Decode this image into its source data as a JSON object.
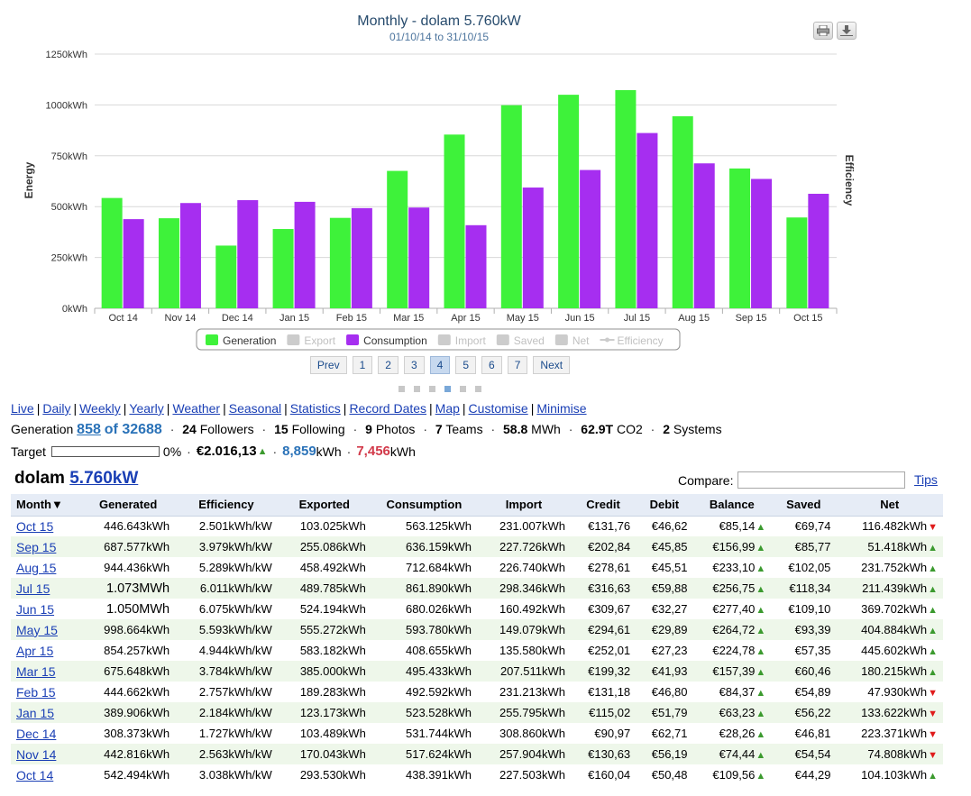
{
  "chart_data": {
    "type": "bar",
    "title": "Monthly - dolam 5.760kW",
    "subtitle": "01/10/14 to 31/10/15",
    "ylabel": "Energy",
    "y2label": "Efficiency",
    "ylim": [
      0,
      1250
    ],
    "yticks": [
      "0kWh",
      "250kWh",
      "500kWh",
      "750kWh",
      "1000kWh",
      "1250kWh"
    ],
    "categories": [
      "Oct 14",
      "Nov 14",
      "Dec 14",
      "Jan 15",
      "Feb 15",
      "Mar 15",
      "Apr 15",
      "May 15",
      "Jun 15",
      "Jul 15",
      "Aug 15",
      "Sep 15",
      "Oct 15"
    ],
    "series": [
      {
        "name": "Generation",
        "color": "#3ef23a",
        "values": [
          542.494,
          442.816,
          308.373,
          389.906,
          444.662,
          675.648,
          854.257,
          998.664,
          1050.0,
          1073.0,
          944.436,
          687.577,
          446.643
        ]
      },
      {
        "name": "Consumption",
        "color": "#a62ef0",
        "values": [
          438.391,
          517.624,
          531.744,
          523.528,
          492.592,
          495.433,
          408.655,
          593.78,
          680.026,
          861.89,
          712.684,
          636.159,
          563.125
        ]
      }
    ],
    "legend": [
      {
        "name": "Generation",
        "color": "#3ef23a",
        "active": true
      },
      {
        "name": "Export",
        "color": "#cccccc",
        "active": false
      },
      {
        "name": "Consumption",
        "color": "#a62ef0",
        "active": true
      },
      {
        "name": "Import",
        "color": "#cccccc",
        "active": false
      },
      {
        "name": "Saved",
        "color": "#cccccc",
        "active": false
      },
      {
        "name": "Net",
        "color": "#cccccc",
        "active": false
      },
      {
        "name": "Efficiency",
        "color": "#cccccc",
        "active": false,
        "line": true
      }
    ],
    "legend_position": "bottom-center",
    "grid": true
  },
  "pager": {
    "prev": "Prev",
    "next": "Next",
    "pages": [
      "1",
      "2",
      "3",
      "4",
      "5",
      "6",
      "7"
    ],
    "active": "4"
  },
  "nav_links": [
    "Live",
    "Daily",
    "Weekly",
    "Yearly",
    "Weather",
    "Seasonal",
    "Statistics",
    "Record Dates",
    "Map",
    "Customise",
    "Minimise"
  ],
  "stats": {
    "generation_label": "Generation",
    "rank": "858",
    "rank_of": "of 32688",
    "followers": "24",
    "followers_label": "Followers",
    "following": "15",
    "following_label": "Following",
    "photos": "9",
    "photos_label": "Photos",
    "teams": "7",
    "teams_label": "Teams",
    "mwh": "58.8",
    "mwh_label": "MWh",
    "co2": "62.9T",
    "co2_label": "CO2",
    "systems": "2",
    "systems_label": "Systems"
  },
  "target": {
    "label": "Target",
    "progress_percent": 0,
    "percent_text": "0%",
    "money": "€2.016,13",
    "blue_value": "8,859",
    "blue_unit": "kWh",
    "red_value": "7,456",
    "red_unit": "kWh"
  },
  "system": {
    "name": "dolam",
    "size": "5.760kW"
  },
  "compare": {
    "label": "Compare:",
    "value": ""
  },
  "tips": "Tips",
  "table": {
    "headers": [
      "Month▼",
      "Generated",
      "Efficiency",
      "Exported",
      "Consumption",
      "Import",
      "Credit",
      "Debit",
      "Balance",
      "Saved",
      "Net"
    ],
    "rows": [
      {
        "month": "Oct 15",
        "generated": "446.643kWh",
        "efficiency": "2.501kWh/kW",
        "exported": "103.025kWh",
        "consumption": "563.125kWh",
        "import": "231.007kWh",
        "credit": "€131,76",
        "debit": "€46,62",
        "balance": "€85,14",
        "saved": "€69,74",
        "net": "116.482kWh",
        "net_dir": "down"
      },
      {
        "month": "Sep 15",
        "generated": "687.577kWh",
        "efficiency": "3.979kWh/kW",
        "exported": "255.086kWh",
        "consumption": "636.159kWh",
        "import": "227.726kWh",
        "credit": "€202,84",
        "debit": "€45,85",
        "balance": "€156,99",
        "saved": "€85,77",
        "net": "51.418kWh",
        "net_dir": "up"
      },
      {
        "month": "Aug 15",
        "generated": "944.436kWh",
        "efficiency": "5.289kWh/kW",
        "exported": "458.492kWh",
        "consumption": "712.684kWh",
        "import": "226.740kWh",
        "credit": "€278,61",
        "debit": "€45,51",
        "balance": "€233,10",
        "saved": "€102,05",
        "net": "231.752kWh",
        "net_dir": "up"
      },
      {
        "month": "Jul 15",
        "generated": "1.073MWh",
        "efficiency": "6.011kWh/kW",
        "exported": "489.785kWh",
        "consumption": "861.890kWh",
        "import": "298.346kWh",
        "credit": "€316,63",
        "debit": "€59,88",
        "balance": "€256,75",
        "saved": "€118,34",
        "net": "211.439kWh",
        "net_dir": "up"
      },
      {
        "month": "Jun 15",
        "generated": "1.050MWh",
        "efficiency": "6.075kWh/kW",
        "exported": "524.194kWh",
        "consumption": "680.026kWh",
        "import": "160.492kWh",
        "credit": "€309,67",
        "debit": "€32,27",
        "balance": "€277,40",
        "saved": "€109,10",
        "net": "369.702kWh",
        "net_dir": "up"
      },
      {
        "month": "May 15",
        "generated": "998.664kWh",
        "efficiency": "5.593kWh/kW",
        "exported": "555.272kWh",
        "consumption": "593.780kWh",
        "import": "149.079kWh",
        "credit": "€294,61",
        "debit": "€29,89",
        "balance": "€264,72",
        "saved": "€93,39",
        "net": "404.884kWh",
        "net_dir": "up"
      },
      {
        "month": "Apr 15",
        "generated": "854.257kWh",
        "efficiency": "4.944kWh/kW",
        "exported": "583.182kWh",
        "consumption": "408.655kWh",
        "import": "135.580kWh",
        "credit": "€252,01",
        "debit": "€27,23",
        "balance": "€224,78",
        "saved": "€57,35",
        "net": "445.602kWh",
        "net_dir": "up"
      },
      {
        "month": "Mar 15",
        "generated": "675.648kWh",
        "efficiency": "3.784kWh/kW",
        "exported": "385.000kWh",
        "consumption": "495.433kWh",
        "import": "207.511kWh",
        "credit": "€199,32",
        "debit": "€41,93",
        "balance": "€157,39",
        "saved": "€60,46",
        "net": "180.215kWh",
        "net_dir": "up"
      },
      {
        "month": "Feb 15",
        "generated": "444.662kWh",
        "efficiency": "2.757kWh/kW",
        "exported": "189.283kWh",
        "consumption": "492.592kWh",
        "import": "231.213kWh",
        "credit": "€131,18",
        "debit": "€46,80",
        "balance": "€84,37",
        "saved": "€54,89",
        "net": "47.930kWh",
        "net_dir": "down"
      },
      {
        "month": "Jan 15",
        "generated": "389.906kWh",
        "efficiency": "2.184kWh/kW",
        "exported": "123.173kWh",
        "consumption": "523.528kWh",
        "import": "255.795kWh",
        "credit": "€115,02",
        "debit": "€51,79",
        "balance": "€63,23",
        "saved": "€56,22",
        "net": "133.622kWh",
        "net_dir": "down"
      },
      {
        "month": "Dec 14",
        "generated": "308.373kWh",
        "efficiency": "1.727kWh/kW",
        "exported": "103.489kWh",
        "consumption": "531.744kWh",
        "import": "308.860kWh",
        "credit": "€90,97",
        "debit": "€62,71",
        "balance": "€28,26",
        "saved": "€46,81",
        "net": "223.371kWh",
        "net_dir": "down"
      },
      {
        "month": "Nov 14",
        "generated": "442.816kWh",
        "efficiency": "2.563kWh/kW",
        "exported": "170.043kWh",
        "consumption": "517.624kWh",
        "import": "257.904kWh",
        "credit": "€130,63",
        "debit": "€56,19",
        "balance": "€74,44",
        "saved": "€54,54",
        "net": "74.808kWh",
        "net_dir": "down"
      },
      {
        "month": "Oct 14",
        "generated": "542.494kWh",
        "efficiency": "3.038kWh/kW",
        "exported": "293.530kWh",
        "consumption": "438.391kWh",
        "import": "227.503kWh",
        "credit": "€160,04",
        "debit": "€50,48",
        "balance": "€109,56",
        "saved": "€44,29",
        "net": "104.103kWh",
        "net_dir": "up"
      }
    ]
  }
}
